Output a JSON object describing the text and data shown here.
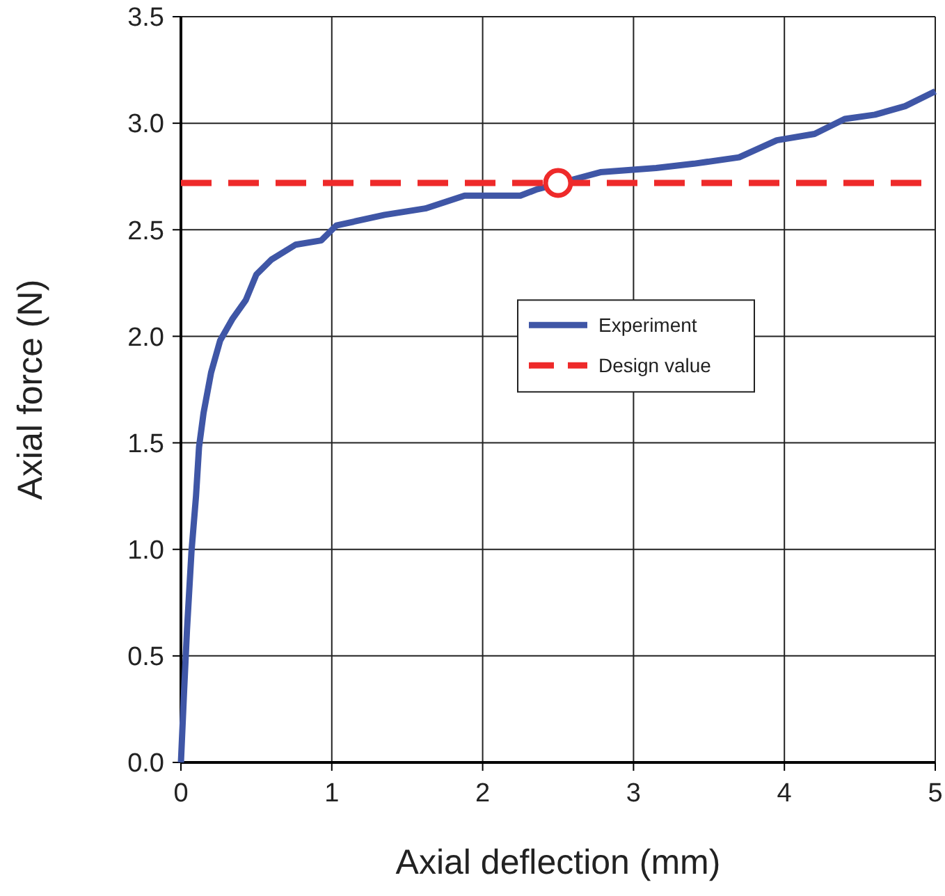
{
  "chart_data": {
    "type": "line",
    "xlabel": "Axial deflection  (mm)",
    "ylabel": "Axial force  (N)",
    "xlim": [
      0,
      5
    ],
    "xticks": [
      0,
      1,
      2,
      3,
      4,
      5
    ],
    "ylim": [
      0,
      3.5
    ],
    "yticks": [
      {
        "value": 0,
        "label": "0.0"
      },
      {
        "value": 0.5,
        "label": "0.5"
      },
      {
        "value": 1,
        "label": "1.0"
      },
      {
        "value": 1.5,
        "label": "1.5"
      },
      {
        "value": 2,
        "label": "2.0"
      },
      {
        "value": 2.5,
        "label": "2.5"
      },
      {
        "value": 3,
        "label": "3.0"
      },
      {
        "value": 3.5,
        "label": "3.5"
      }
    ],
    "grid": true,
    "legend": "right",
    "series": [
      {
        "name": "Experiment",
        "color": "#3f56a6",
        "x": [
          0,
          0.02,
          0.04,
          0.07,
          0.1,
          0.12,
          0.15,
          0.2,
          0.26,
          0.34,
          0.43,
          0.5,
          0.6,
          0.76,
          0.93,
          1.03,
          1.35,
          1.62,
          1.88,
          2.03,
          2.25,
          2.36,
          2.78,
          3.15,
          3.4,
          3.7,
          3.95,
          4.2,
          4.4,
          4.6,
          4.8,
          5
        ],
        "values": [
          0,
          0.32,
          0.62,
          0.99,
          1.25,
          1.48,
          1.64,
          1.83,
          1.98,
          2.08,
          2.17,
          2.29,
          2.36,
          2.43,
          2.45,
          2.52,
          2.57,
          2.6,
          2.66,
          2.66,
          2.66,
          2.69,
          2.77,
          2.79,
          2.81,
          2.84,
          2.92,
          2.95,
          3.02,
          3.04,
          3.08,
          3.15
        ]
      },
      {
        "name": "Design value",
        "type": "line",
        "line_style": "dashed",
        "color": "#ee2a2a",
        "x": [
          0,
          5
        ],
        "values": [
          2.72,
          2.72
        ]
      },
      {
        "type": "scatter",
        "marker": "circle",
        "color": "#ee2a2a",
        "x": [
          2.5
        ],
        "values": [
          2.72
        ]
      }
    ]
  }
}
